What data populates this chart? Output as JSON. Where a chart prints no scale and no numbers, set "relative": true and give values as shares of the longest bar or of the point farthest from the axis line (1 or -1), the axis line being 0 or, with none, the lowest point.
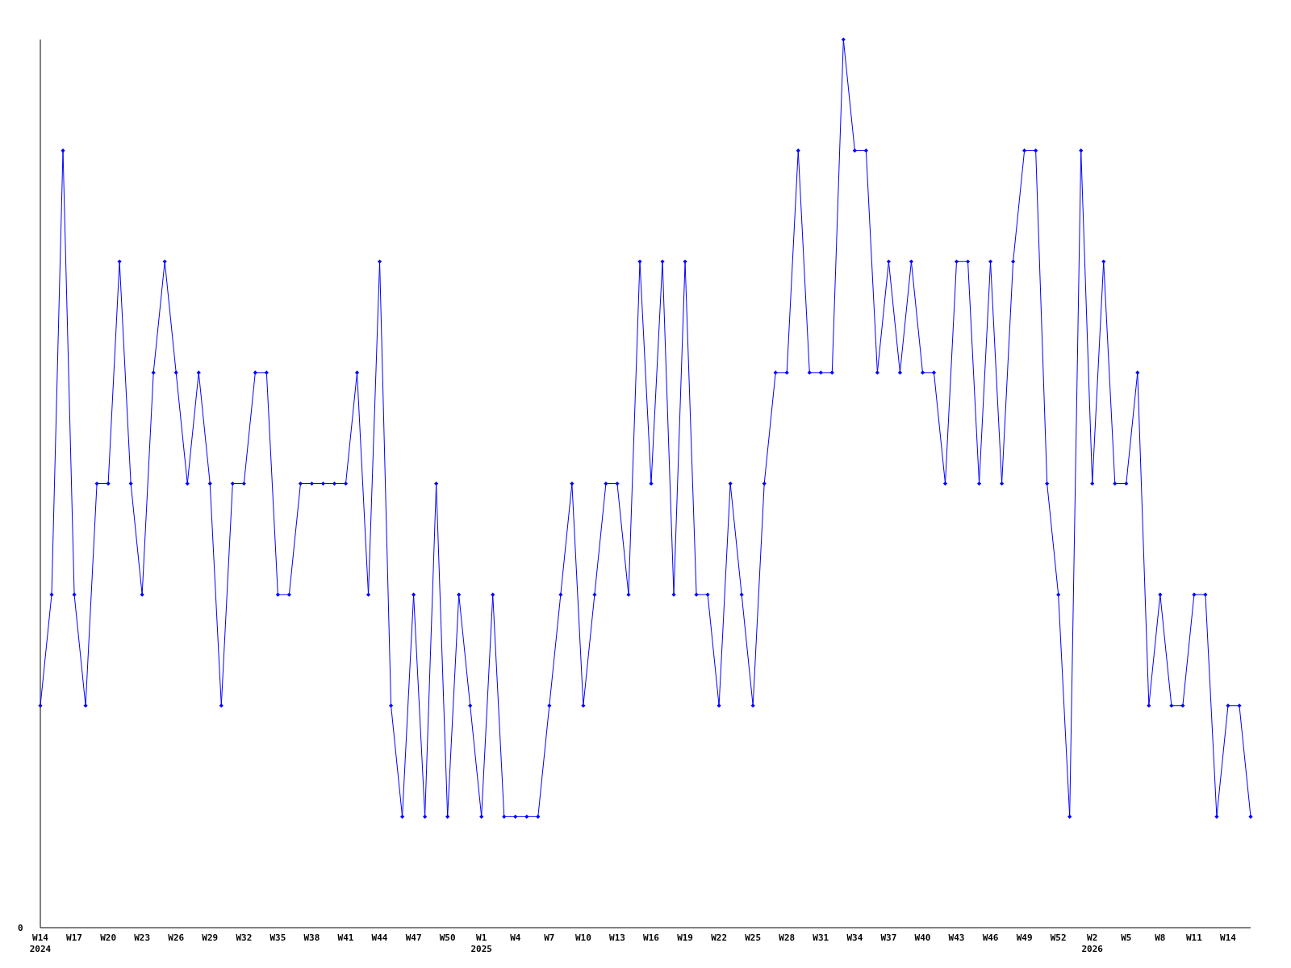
{
  "chart_data": {
    "type": "line",
    "relative": true,
    "marker": "diamond",
    "line_style": "solid",
    "categories": [
      "W14\n2024",
      null,
      null,
      "W17",
      null,
      null,
      "W20",
      null,
      null,
      "W23",
      null,
      null,
      "W26",
      null,
      null,
      "W29",
      null,
      null,
      "W32",
      null,
      null,
      "W35",
      null,
      null,
      "W38",
      null,
      null,
      "W41",
      null,
      null,
      "W44",
      null,
      null,
      "W47",
      null,
      null,
      "W50",
      null,
      null,
      "W1\n2025",
      null,
      null,
      "W4",
      null,
      null,
      "W7",
      null,
      null,
      "W10",
      null,
      null,
      "W13",
      null,
      null,
      "W16",
      null,
      null,
      "W19",
      null,
      null,
      "W22",
      null,
      null,
      "W25",
      null,
      null,
      "W28",
      null,
      null,
      "W31",
      null,
      null,
      "W34",
      null,
      null,
      "W37",
      null,
      null,
      "W40",
      null,
      null,
      "W43",
      null,
      null,
      "W46",
      null,
      null,
      "W49",
      null,
      null,
      "W52",
      null,
      null,
      "W2\n2026",
      null,
      null,
      "W5",
      null,
      null,
      "W8",
      null,
      null,
      "W11",
      null,
      null,
      "W14",
      null,
      null
    ],
    "series": [
      {
        "color": "#0000ff",
        "values": [
          0.25,
          0.375,
          0.875,
          0.375,
          0.25,
          0.5,
          0.5,
          0.75,
          0.5,
          0.375,
          0.625,
          0.75,
          0.625,
          0.5,
          0.625,
          0.5,
          0.25,
          0.5,
          0.5,
          0.625,
          0.625,
          0.375,
          0.375,
          0.5,
          0.5,
          0.5,
          0.5,
          0.5,
          0.625,
          0.375,
          0.75,
          0.25,
          0.125,
          0.375,
          0.125,
          0.5,
          0.125,
          0.375,
          0.25,
          0.125,
          0.375,
          0.125,
          0.125,
          0.125,
          0.125,
          0.25,
          0.375,
          0.5,
          0.25,
          0.375,
          0.5,
          0.5,
          0.375,
          0.75,
          0.5,
          0.75,
          0.375,
          0.75,
          0.375,
          0.375,
          0.25,
          0.5,
          0.375,
          0.25,
          0.5,
          0.625,
          0.625,
          0.875,
          0.625,
          0.625,
          0.625,
          1,
          0.875,
          0.875,
          0.625,
          0.75,
          0.625,
          0.75,
          0.625,
          0.625,
          0.5,
          0.75,
          0.75,
          0.5,
          0.75,
          0.5,
          0.75,
          0.875,
          0.875,
          0.5,
          0.375,
          0.125,
          0.875,
          0.5,
          0.75,
          0.5,
          0.5,
          0.625,
          0.25,
          0.375,
          0.25,
          0.25,
          0.375,
          0.375,
          0.125,
          0.25,
          0.25,
          0.125
        ]
      }
    ],
    "annotations": [
      "0"
    ]
  }
}
